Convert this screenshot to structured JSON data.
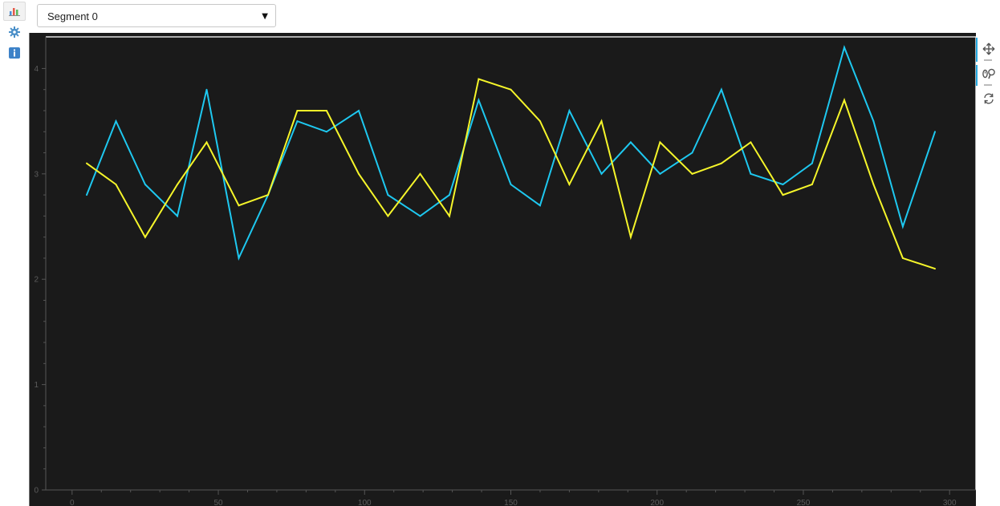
{
  "dropdown": {
    "selected": "Segment 0"
  },
  "sidebar": {
    "items": [
      {
        "icon": "bar-chart-icon",
        "active": true
      },
      {
        "icon": "gear-icon",
        "active": false
      },
      {
        "icon": "info-icon",
        "active": false
      }
    ]
  },
  "toolbar": {
    "tools": [
      "pan-icon",
      "wheel-zoom-icon",
      "reset-icon"
    ]
  },
  "colors": {
    "background": "#1a1a1a",
    "series_1": "#1ec8f0",
    "series_2": "#f5f52a",
    "axis": "#555555",
    "tick_label": "#5c5c5c"
  },
  "chart_data": {
    "type": "line",
    "title": "",
    "xlabel": "",
    "ylabel": "",
    "xlim": [
      -9,
      309
    ],
    "ylim": [
      0,
      4.3
    ],
    "xticks": [
      0,
      50,
      100,
      150,
      200,
      250,
      300
    ],
    "yticks": [
      0,
      1,
      2,
      3,
      4
    ],
    "x": [
      5,
      15,
      25,
      36,
      46,
      57,
      67,
      77,
      87,
      98,
      108,
      119,
      129,
      139,
      150,
      160,
      170,
      181,
      191,
      201,
      212,
      222,
      232,
      243,
      253,
      264,
      274,
      284,
      295
    ],
    "series": [
      {
        "color": "#1ec8f0",
        "values": [
          2.8,
          3.5,
          2.9,
          2.6,
          3.8,
          2.2,
          2.8,
          3.5,
          3.4,
          3.6,
          2.8,
          2.6,
          2.8,
          3.7,
          2.9,
          2.7,
          3.6,
          3.0,
          3.3,
          3.0,
          3.2,
          3.8,
          3.0,
          2.9,
          3.1,
          4.2,
          3.5,
          2.5,
          3.4
        ]
      },
      {
        "color": "#f5f52a",
        "values": [
          3.1,
          2.9,
          2.4,
          2.9,
          3.3,
          2.7,
          2.8,
          3.6,
          3.6,
          3.0,
          2.6,
          3.0,
          2.6,
          3.9,
          3.8,
          3.5,
          2.9,
          3.5,
          2.4,
          3.3,
          3.0,
          3.1,
          3.3,
          2.8,
          2.9,
          3.7,
          2.9,
          2.2,
          2.1
        ]
      }
    ],
    "grid": false,
    "legend": "none"
  }
}
